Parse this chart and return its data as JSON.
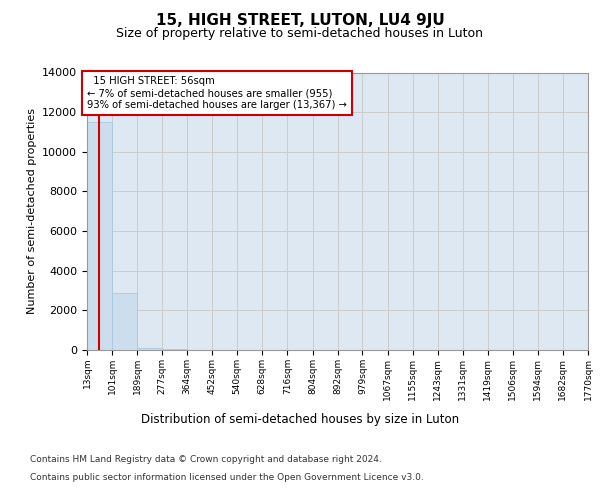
{
  "title": "15, HIGH STREET, LUTON, LU4 9JU",
  "subtitle": "Size of property relative to semi-detached houses in Luton",
  "xlabel": "Distribution of semi-detached houses by size in Luton",
  "ylabel": "Number of semi-detached properties",
  "bin_edges": [
    13,
    101,
    189,
    277,
    364,
    452,
    540,
    628,
    716,
    804,
    892,
    979,
    1067,
    1155,
    1243,
    1331,
    1419,
    1506,
    1594,
    1682,
    1770
  ],
  "bar_heights": [
    11500,
    2900,
    120,
    50,
    20,
    10,
    5,
    3,
    2,
    1,
    1,
    1,
    1,
    0,
    0,
    0,
    0,
    0,
    0,
    0
  ],
  "bar_color": "#ccdded",
  "bar_edgecolor": "#a8c8de",
  "property_size": 56,
  "property_label": "15 HIGH STREET: 56sqm",
  "pct_smaller": 7,
  "count_smaller": 955,
  "pct_larger": 93,
  "count_larger": 13367,
  "vline_color": "#cc0000",
  "annotation_box_edgecolor": "#cc0000",
  "annotation_box_facecolor": "#ffffff",
  "ylim": [
    0,
    14000
  ],
  "yticks": [
    0,
    2000,
    4000,
    6000,
    8000,
    10000,
    12000,
    14000
  ],
  "grid_color": "#cccccc",
  "background_color": "#dde8f3",
  "footer_line1": "Contains HM Land Registry data © Crown copyright and database right 2024.",
  "footer_line2": "Contains public sector information licensed under the Open Government Licence v3.0."
}
